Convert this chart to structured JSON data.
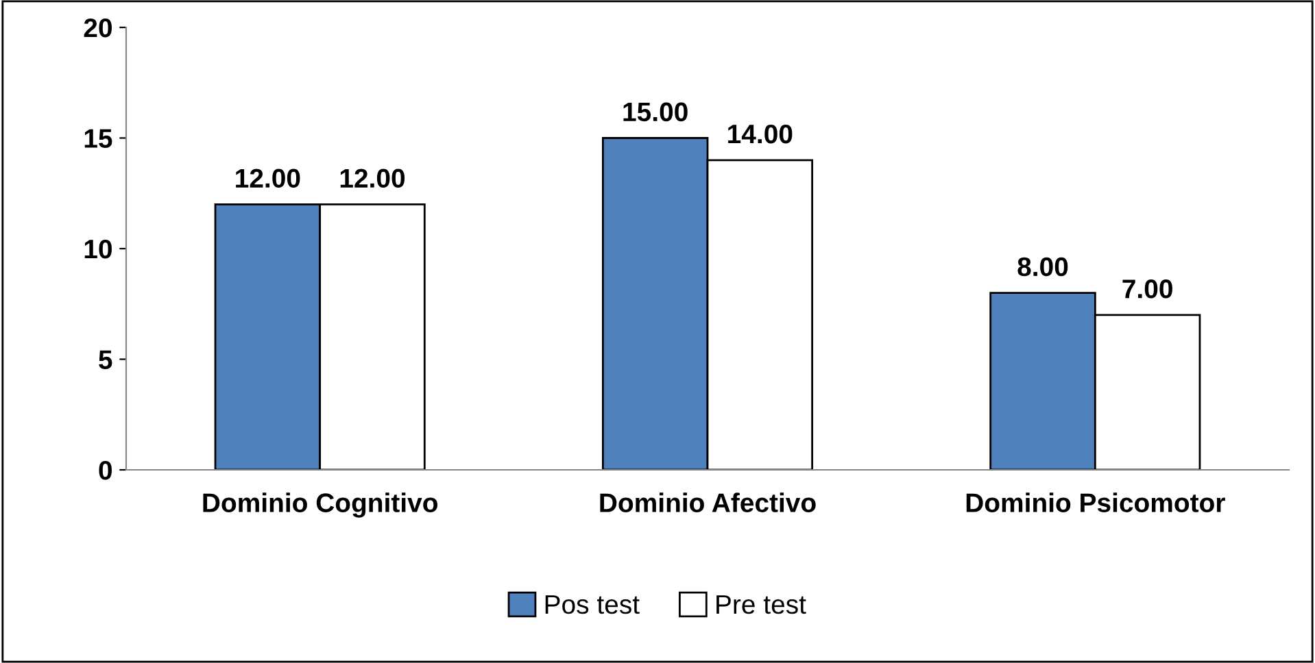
{
  "chart_data": {
    "type": "bar",
    "categories": [
      "Dominio Cognitivo",
      "Dominio Afectivo",
      "Dominio Psicomotor"
    ],
    "series": [
      {
        "name": "Pos test",
        "color": "#4f81bd",
        "values": [
          12,
          15,
          8
        ],
        "value_labels": [
          "12.00",
          "15.00",
          "8.00"
        ]
      },
      {
        "name": "Pre test",
        "color": "#ffffff",
        "values": [
          12,
          14,
          7
        ],
        "value_labels": [
          "12.00",
          "14.00",
          "7.00"
        ]
      }
    ],
    "ylim": [
      0,
      20
    ],
    "yticks": [
      0,
      5,
      10,
      15,
      20
    ],
    "grid": false,
    "legend": "bottom"
  }
}
